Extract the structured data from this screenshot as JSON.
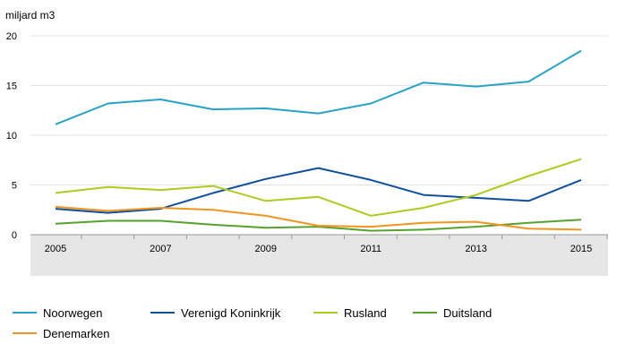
{
  "chart_data": {
    "type": "line",
    "title": "",
    "unit_label": "miljard m3",
    "xlabel": "",
    "ylabel": "miljard m3",
    "x": [
      2005,
      2006,
      2007,
      2008,
      2009,
      2010,
      2011,
      2012,
      2013,
      2014,
      2015
    ],
    "x_tick_labels": [
      "2005",
      "2007",
      "2009",
      "2011",
      "2013",
      "2015"
    ],
    "y_ticks": [
      0,
      5,
      10,
      15,
      20
    ],
    "ylim": [
      0,
      20
    ],
    "grid": "horizontal",
    "legend_position": "bottom-left",
    "series": [
      {
        "name": "Noorwegen",
        "color": "#26a3c6",
        "values": [
          11.1,
          13.2,
          13.6,
          12.6,
          12.7,
          12.2,
          13.2,
          15.3,
          14.9,
          15.4,
          18.5
        ]
      },
      {
        "name": "Verenigd Koninkrijk",
        "color": "#0e4f9e",
        "values": [
          2.6,
          2.2,
          2.6,
          4.2,
          5.6,
          6.7,
          5.5,
          4.0,
          3.7,
          3.4,
          5.5
        ]
      },
      {
        "name": "Rusland",
        "color": "#afcb1e",
        "values": [
          4.2,
          4.8,
          4.5,
          4.9,
          3.4,
          3.8,
          1.9,
          2.7,
          4.0,
          5.9,
          7.6
        ]
      },
      {
        "name": "Duitsland",
        "color": "#57a12e",
        "values": [
          1.1,
          1.4,
          1.4,
          1.0,
          0.7,
          0.8,
          0.4,
          0.5,
          0.8,
          1.2,
          1.5
        ]
      },
      {
        "name": "Denemarken",
        "color": "#f0951f",
        "values": [
          2.8,
          2.4,
          2.7,
          2.5,
          1.9,
          0.9,
          0.8,
          1.2,
          1.3,
          0.6,
          0.5
        ]
      }
    ]
  }
}
